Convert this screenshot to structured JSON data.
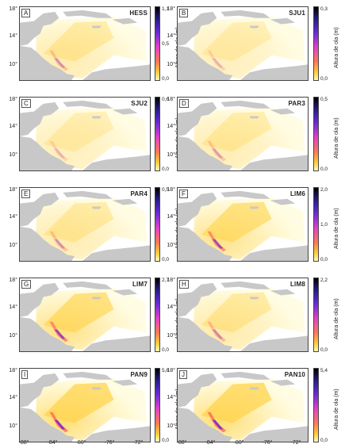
{
  "colorbar_title": "Altura de ola (m)",
  "y_tick_labels": [
    "18°",
    "14°",
    "10°"
  ],
  "x_tick_labels_left": [
    "-88°",
    "-84°",
    "-80°",
    "-76°",
    "-72°"
  ],
  "x_tick_labels_right": [
    "-88°",
    "-84°",
    "-80°",
    "-76°",
    "-72°"
  ],
  "colors": {
    "land": "#c8c8c8",
    "sea_low": "#fffbd0",
    "sea_mid": "#ffd34a",
    "hot": "#ff6a5a",
    "peak": "#7a24c9"
  },
  "panels": [
    {
      "letter": "A",
      "code": "HESS",
      "cb_max": "1,1",
      "cb_mid": "0,5",
      "cb_min": "0,0",
      "intensity": 0.35
    },
    {
      "letter": "B",
      "code": "SJU1",
      "cb_max": "0,3",
      "cb_mid": "",
      "cb_min": "0,0",
      "intensity": 0.2
    },
    {
      "letter": "C",
      "code": "SJU2",
      "cb_max": "0,6",
      "cb_mid": "",
      "cb_min": "0,0",
      "intensity": 0.2
    },
    {
      "letter": "D",
      "code": "PAR3",
      "cb_max": "0,5",
      "cb_mid": "",
      "cb_min": "0,0",
      "intensity": 0.3
    },
    {
      "letter": "E",
      "code": "PAR4",
      "cb_max": "0,5",
      "cb_mid": "",
      "cb_min": "0,0",
      "intensity": 0.35
    },
    {
      "letter": "F",
      "code": "LIM6",
      "cb_max": "2,0",
      "cb_mid": "1,0",
      "cb_min": "0,0",
      "intensity": 0.75
    },
    {
      "letter": "G",
      "code": "LIM7",
      "cb_max": "2,7",
      "cb_mid": "",
      "cb_min": "0,0",
      "intensity": 0.8
    },
    {
      "letter": "H",
      "code": "LIM8",
      "cb_max": "2,2",
      "cb_mid": "",
      "cb_min": "0,0",
      "intensity": 0.4
    },
    {
      "letter": "I",
      "code": "PAN9",
      "cb_max": "5,8",
      "cb_mid": "",
      "cb_min": "0,0",
      "intensity": 0.95
    },
    {
      "letter": "J",
      "code": "PAN10",
      "cb_max": "5,4",
      "cb_mid": "",
      "cb_min": "0,0",
      "intensity": 0.95
    }
  ]
}
